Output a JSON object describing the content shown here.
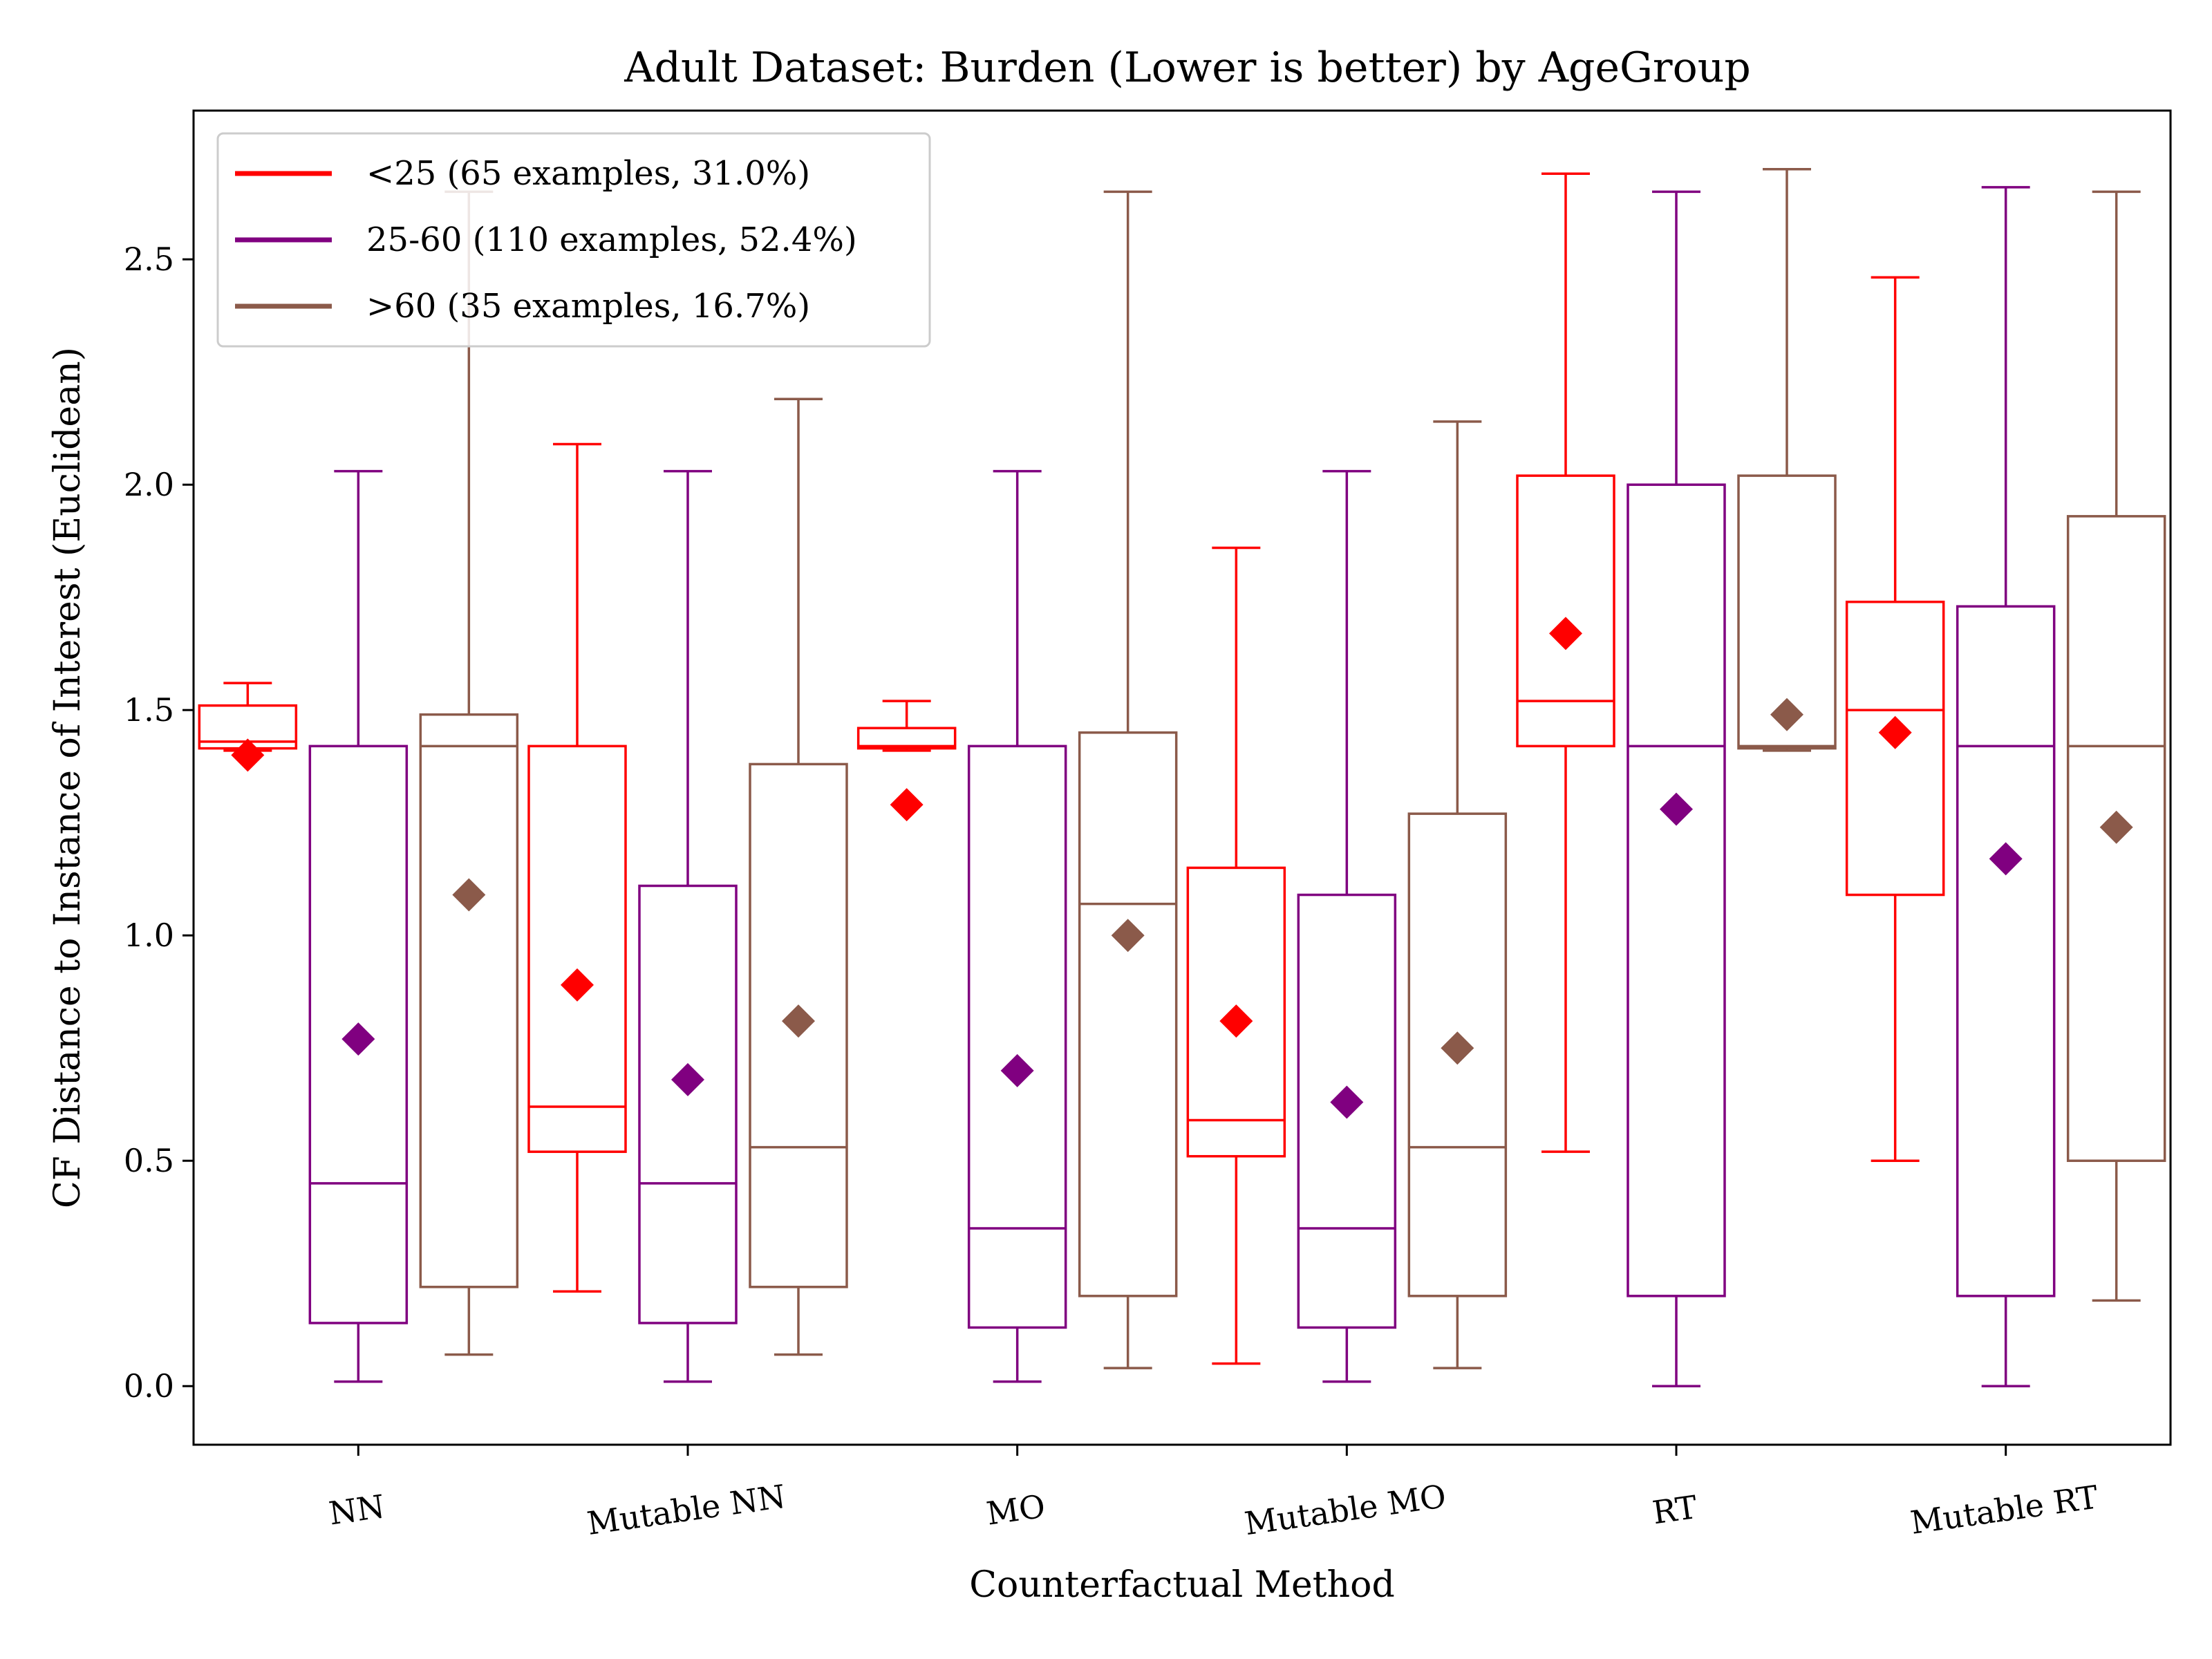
{
  "chart_data": {
    "type": "box",
    "title": "Adult Dataset: Burden (Lower is better) by AgeGroup",
    "xlabel": "Counterfactual Method",
    "ylabel": "CF Distance to Instance of Interest (Euclidean)",
    "ylim": [
      -0.13,
      2.83
    ],
    "yticks": [
      0.0,
      0.5,
      1.0,
      1.5,
      2.0,
      2.5
    ],
    "ytick_labels": [
      "0.0",
      "0.5",
      "1.0",
      "1.5",
      "2.0",
      "2.5"
    ],
    "categories": [
      "NN",
      "Mutable NN",
      "MO",
      "Mutable MO",
      "RT",
      "Mutable RT"
    ],
    "grid": false,
    "legend_position": "top-left",
    "colors": {
      "<25": "#ff0000",
      "25-60": "#800080",
      ">60": "#8b5a4a"
    },
    "series": [
      {
        "name": "<25",
        "legend_label": "<25 (65 examples, 31.0%)",
        "color": "#ff0000",
        "boxes": [
          {
            "whisker_low": 1.41,
            "q1": 1.415,
            "median": 1.43,
            "q3": 1.51,
            "whisker_high": 1.56,
            "mean": 1.4
          },
          {
            "whisker_low": 0.21,
            "q1": 0.52,
            "median": 0.62,
            "q3": 1.42,
            "whisker_high": 2.09,
            "mean": 0.89
          },
          {
            "whisker_low": 1.41,
            "q1": 1.415,
            "median": 1.42,
            "q3": 1.46,
            "whisker_high": 1.52,
            "mean": 1.29
          },
          {
            "whisker_low": 0.05,
            "q1": 0.51,
            "median": 0.59,
            "q3": 1.15,
            "whisker_high": 1.86,
            "mean": 0.81
          },
          {
            "whisker_low": 0.52,
            "q1": 1.42,
            "median": 1.52,
            "q3": 2.02,
            "whisker_high": 2.69,
            "mean": 1.67
          },
          {
            "whisker_low": 0.5,
            "q1": 1.09,
            "median": 1.5,
            "q3": 1.74,
            "whisker_high": 2.46,
            "mean": 1.45
          }
        ]
      },
      {
        "name": "25-60",
        "legend_label": "25-60 (110 examples, 52.4%)",
        "color": "#800080",
        "boxes": [
          {
            "whisker_low": 0.01,
            "q1": 0.14,
            "median": 0.45,
            "q3": 1.42,
            "whisker_high": 2.03,
            "mean": 0.77
          },
          {
            "whisker_low": 0.01,
            "q1": 0.14,
            "median": 0.45,
            "q3": 1.11,
            "whisker_high": 2.03,
            "mean": 0.68
          },
          {
            "whisker_low": 0.01,
            "q1": 0.13,
            "median": 0.35,
            "q3": 1.42,
            "whisker_high": 2.03,
            "mean": 0.7
          },
          {
            "whisker_low": 0.01,
            "q1": 0.13,
            "median": 0.35,
            "q3": 1.09,
            "whisker_high": 2.03,
            "mean": 0.63
          },
          {
            "whisker_low": 0.0,
            "q1": 0.2,
            "median": 1.42,
            "q3": 2.0,
            "whisker_high": 2.65,
            "mean": 1.28
          },
          {
            "whisker_low": 0.0,
            "q1": 0.2,
            "median": 1.42,
            "q3": 1.73,
            "whisker_high": 2.66,
            "mean": 1.17
          }
        ]
      },
      {
        "name": ">60",
        "legend_label": ">60 (35 examples, 16.7%)",
        "color": "#8b5a4a",
        "boxes": [
          {
            "whisker_low": 0.07,
            "q1": 0.22,
            "median": 1.42,
            "q3": 1.49,
            "whisker_high": 2.65,
            "mean": 1.09
          },
          {
            "whisker_low": 0.07,
            "q1": 0.22,
            "median": 0.53,
            "q3": 1.38,
            "whisker_high": 2.19,
            "mean": 0.81
          },
          {
            "whisker_low": 0.04,
            "q1": 0.2,
            "median": 1.07,
            "q3": 1.45,
            "whisker_high": 2.65,
            "mean": 1.0
          },
          {
            "whisker_low": 0.04,
            "q1": 0.2,
            "median": 0.53,
            "q3": 1.27,
            "whisker_high": 2.14,
            "mean": 0.75
          },
          {
            "whisker_low": 1.41,
            "q1": 1.415,
            "median": 1.42,
            "q3": 2.02,
            "whisker_high": 2.7,
            "mean": 1.49
          },
          {
            "whisker_low": 0.19,
            "q1": 0.5,
            "median": 1.42,
            "q3": 1.93,
            "whisker_high": 2.65,
            "mean": 1.24
          }
        ]
      }
    ]
  }
}
